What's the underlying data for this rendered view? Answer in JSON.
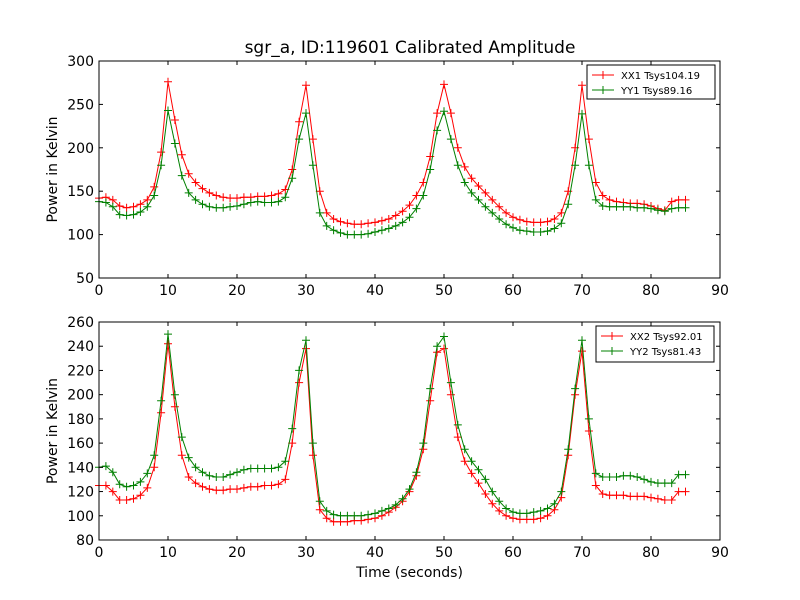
{
  "figure": {
    "title": "sgr_a, ID:119601 Calibrated Amplitude"
  },
  "chart_data": [
    {
      "type": "line",
      "title": "sgr_a, ID:119601 Calibrated Amplitude",
      "xlabel": "",
      "ylabel": "Power in Kelvin",
      "xlim": [
        0,
        90
      ],
      "ylim": [
        50,
        300
      ],
      "xticks": [
        0,
        10,
        20,
        30,
        40,
        50,
        60,
        70,
        80,
        90
      ],
      "yticks": [
        50,
        100,
        150,
        200,
        250,
        300
      ],
      "legend_position": "top-right",
      "grid": false,
      "series": [
        {
          "name": "XX1 Tsys104.19",
          "color": "#ff0000",
          "marker": "+",
          "x": [
            0,
            1,
            2,
            3,
            4,
            5,
            6,
            7,
            8,
            9,
            10,
            11,
            12,
            13,
            14,
            15,
            16,
            17,
            18,
            19,
            20,
            21,
            22,
            23,
            24,
            25,
            26,
            27,
            28,
            29,
            30,
            31,
            32,
            33,
            34,
            35,
            36,
            37,
            38,
            39,
            40,
            41,
            42,
            43,
            44,
            45,
            46,
            47,
            48,
            49,
            50,
            51,
            52,
            53,
            54,
            55,
            56,
            57,
            58,
            59,
            60,
            61,
            62,
            63,
            64,
            65,
            66,
            67,
            68,
            69,
            70,
            71,
            72,
            73,
            74,
            75,
            76,
            77,
            78,
            79,
            80,
            81,
            82,
            83,
            84,
            85
          ],
          "y": [
            142,
            143,
            140,
            133,
            131,
            132,
            135,
            140,
            155,
            195,
            276,
            232,
            192,
            170,
            160,
            153,
            148,
            145,
            143,
            142,
            142,
            143,
            143,
            144,
            144,
            145,
            147,
            152,
            175,
            230,
            272,
            210,
            150,
            125,
            118,
            115,
            113,
            112,
            112,
            113,
            114,
            116,
            118,
            122,
            127,
            134,
            145,
            160,
            190,
            240,
            273,
            240,
            200,
            178,
            165,
            156,
            148,
            140,
            132,
            125,
            120,
            117,
            115,
            114,
            114,
            115,
            118,
            125,
            150,
            200,
            272,
            210,
            160,
            145,
            140,
            138,
            137,
            136,
            136,
            135,
            133,
            130,
            128,
            138,
            140,
            140
          ]
        },
        {
          "name": "YY1 Tsys89.16",
          "color": "#008000",
          "marker": "+",
          "x": [
            0,
            1,
            2,
            3,
            4,
            5,
            6,
            7,
            8,
            9,
            10,
            11,
            12,
            13,
            14,
            15,
            16,
            17,
            18,
            19,
            20,
            21,
            22,
            23,
            24,
            25,
            26,
            27,
            28,
            29,
            30,
            31,
            32,
            33,
            34,
            35,
            36,
            37,
            38,
            39,
            40,
            41,
            42,
            43,
            44,
            45,
            46,
            47,
            48,
            49,
            50,
            51,
            52,
            53,
            54,
            55,
            56,
            57,
            58,
            59,
            60,
            61,
            62,
            63,
            64,
            65,
            66,
            67,
            68,
            69,
            70,
            71,
            72,
            73,
            74,
            75,
            76,
            77,
            78,
            79,
            80,
            81,
            82,
            83,
            84,
            85
          ],
          "y": [
            138,
            137,
            132,
            123,
            122,
            123,
            126,
            132,
            145,
            180,
            243,
            205,
            168,
            148,
            140,
            135,
            132,
            131,
            131,
            132,
            133,
            135,
            137,
            138,
            137,
            137,
            138,
            143,
            165,
            210,
            240,
            180,
            125,
            110,
            105,
            102,
            100,
            100,
            100,
            101,
            103,
            105,
            107,
            110,
            114,
            120,
            130,
            145,
            175,
            220,
            242,
            210,
            180,
            160,
            148,
            140,
            132,
            125,
            118,
            112,
            108,
            105,
            104,
            103,
            103,
            104,
            107,
            113,
            135,
            180,
            239,
            180,
            140,
            133,
            132,
            132,
            132,
            132,
            131,
            131,
            130,
            128,
            127,
            130,
            131,
            131
          ]
        }
      ]
    },
    {
      "type": "line",
      "title": "",
      "xlabel": "Time (seconds)",
      "ylabel": "Power in Kelvin",
      "xlim": [
        0,
        90
      ],
      "ylim": [
        80,
        260
      ],
      "xticks": [
        0,
        10,
        20,
        30,
        40,
        50,
        60,
        70,
        80,
        90
      ],
      "yticks": [
        80,
        100,
        120,
        140,
        160,
        180,
        200,
        220,
        240,
        260
      ],
      "legend_position": "top-right",
      "grid": false,
      "series": [
        {
          "name": "XX2 Tsys92.01",
          "color": "#ff0000",
          "marker": "+",
          "x": [
            0,
            1,
            2,
            3,
            4,
            5,
            6,
            7,
            8,
            9,
            10,
            11,
            12,
            13,
            14,
            15,
            16,
            17,
            18,
            19,
            20,
            21,
            22,
            23,
            24,
            25,
            26,
            27,
            28,
            29,
            30,
            31,
            32,
            33,
            34,
            35,
            36,
            37,
            38,
            39,
            40,
            41,
            42,
            43,
            44,
            45,
            46,
            47,
            48,
            49,
            50,
            51,
            52,
            53,
            54,
            55,
            56,
            57,
            58,
            59,
            60,
            61,
            62,
            63,
            64,
            65,
            66,
            67,
            68,
            69,
            70,
            71,
            72,
            73,
            74,
            75,
            76,
            77,
            78,
            79,
            80,
            81,
            82,
            83,
            84,
            85
          ],
          "y": [
            125,
            125,
            120,
            113,
            113,
            114,
            117,
            123,
            140,
            185,
            242,
            190,
            150,
            132,
            127,
            124,
            122,
            121,
            121,
            122,
            122,
            123,
            124,
            124,
            125,
            125,
            126,
            130,
            160,
            210,
            238,
            150,
            105,
            98,
            95,
            95,
            95,
            96,
            96,
            97,
            98,
            100,
            103,
            107,
            112,
            120,
            133,
            155,
            195,
            235,
            238,
            200,
            165,
            145,
            135,
            127,
            118,
            110,
            104,
            100,
            98,
            97,
            97,
            97,
            98,
            100,
            105,
            115,
            150,
            200,
            236,
            170,
            125,
            118,
            117,
            117,
            117,
            116,
            116,
            116,
            115,
            114,
            113,
            113,
            120,
            120
          ]
        },
        {
          "name": "YY2 Tsys81.43",
          "color": "#008000",
          "marker": "+",
          "x": [
            0,
            1,
            2,
            3,
            4,
            5,
            6,
            7,
            8,
            9,
            10,
            11,
            12,
            13,
            14,
            15,
            16,
            17,
            18,
            19,
            20,
            21,
            22,
            23,
            24,
            25,
            26,
            27,
            28,
            29,
            30,
            31,
            32,
            33,
            34,
            35,
            36,
            37,
            38,
            39,
            40,
            41,
            42,
            43,
            44,
            45,
            46,
            47,
            48,
            49,
            50,
            51,
            52,
            53,
            54,
            55,
            56,
            57,
            58,
            59,
            60,
            61,
            62,
            63,
            64,
            65,
            66,
            67,
            68,
            69,
            70,
            71,
            72,
            73,
            74,
            75,
            76,
            77,
            78,
            79,
            80,
            81,
            82,
            83,
            84,
            85
          ],
          "y": [
            140,
            141,
            136,
            126,
            124,
            125,
            128,
            135,
            150,
            195,
            250,
            200,
            165,
            148,
            140,
            136,
            133,
            132,
            132,
            134,
            136,
            138,
            139,
            139,
            139,
            139,
            140,
            145,
            172,
            220,
            245,
            160,
            112,
            104,
            101,
            100,
            100,
            100,
            100,
            101,
            102,
            104,
            106,
            109,
            114,
            122,
            136,
            160,
            205,
            240,
            248,
            210,
            175,
            155,
            145,
            138,
            130,
            120,
            112,
            106,
            103,
            102,
            102,
            103,
            104,
            106,
            110,
            120,
            155,
            205,
            245,
            180,
            135,
            132,
            132,
            132,
            133,
            133,
            132,
            130,
            128,
            127,
            127,
            127,
            134,
            134
          ]
        }
      ]
    }
  ]
}
